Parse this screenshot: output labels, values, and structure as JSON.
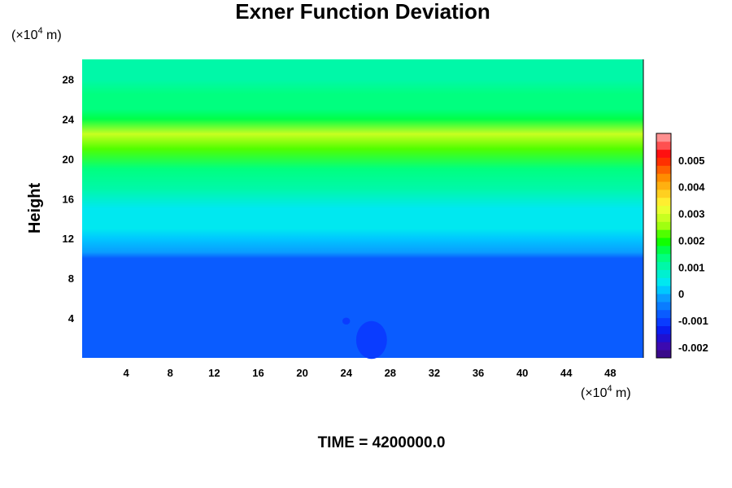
{
  "chart_data": {
    "type": "heatmap",
    "title": "Exner Function Deviation",
    "ylabel": "Height",
    "x_unit": {
      "prefix": "(×10",
      "exp": "4",
      "suffix": " m)"
    },
    "y_unit": {
      "prefix": "(×10",
      "exp": "4",
      "suffix": " m)"
    },
    "xlim": [
      0,
      51
    ],
    "ylim": [
      0,
      30
    ],
    "x_ticks": [
      4,
      8,
      12,
      16,
      20,
      24,
      28,
      32,
      36,
      40,
      44,
      48
    ],
    "y_ticks": [
      4,
      8,
      12,
      16,
      20,
      24,
      28
    ],
    "footer": "TIME = 4200000.0",
    "colorbar": {
      "range": [
        -0.0024,
        0.006
      ],
      "ticks": [
        -0.002,
        -0.001,
        0,
        0.001,
        0.002,
        0.003,
        0.004,
        0.005
      ],
      "tick_labels": [
        "-0.002",
        "-0.001",
        "0",
        "0.001",
        "0.002",
        "0.003",
        "0.004",
        "0.005"
      ],
      "colors": [
        "#3a0a8a",
        "#3c0ab0",
        "#2010d0",
        "#0a1ef0",
        "#0a3cff",
        "#0a5cff",
        "#0a7cff",
        "#0a9cff",
        "#00c8ff",
        "#00e8f0",
        "#00f0d0",
        "#00f8a8",
        "#00ff7f",
        "#00ff48",
        "#10ff00",
        "#50ff00",
        "#a0ff10",
        "#c8ff20",
        "#eaff30",
        "#ffee30",
        "#ffd020",
        "#ffb010",
        "#ff8c00",
        "#ff6000",
        "#ff3000",
        "#ff1010",
        "#ff5050",
        "#ff9090"
      ]
    },
    "field_profile": [
      {
        "height": 0,
        "value": -0.0008
      },
      {
        "height": 10,
        "value": -0.0008
      },
      {
        "height": 10.6,
        "value": -0.0002
      },
      {
        "height": 12,
        "value": 0.0002
      },
      {
        "height": 13,
        "value": 0.0004
      },
      {
        "height": 15,
        "value": 0.0005
      },
      {
        "height": 17,
        "value": 0.0009
      },
      {
        "height": 19,
        "value": 0.0013
      },
      {
        "height": 21,
        "value": 0.0021
      },
      {
        "height": 22.5,
        "value": 0.0028
      },
      {
        "height": 24,
        "value": 0.0016
      },
      {
        "height": 25,
        "value": 0.0013
      },
      {
        "height": 26.5,
        "value": 0.0012
      },
      {
        "height": 28,
        "value": 0.001
      },
      {
        "height": 30,
        "value": 0.0009
      }
    ],
    "features": [
      {
        "x": 26.3,
        "y": 1.8,
        "rx": 1.4,
        "ry": 1.9,
        "value": -0.0011
      },
      {
        "x": 24.0,
        "y": 3.7,
        "rx": 0.35,
        "ry": 0.35,
        "value": -0.0011
      }
    ]
  }
}
